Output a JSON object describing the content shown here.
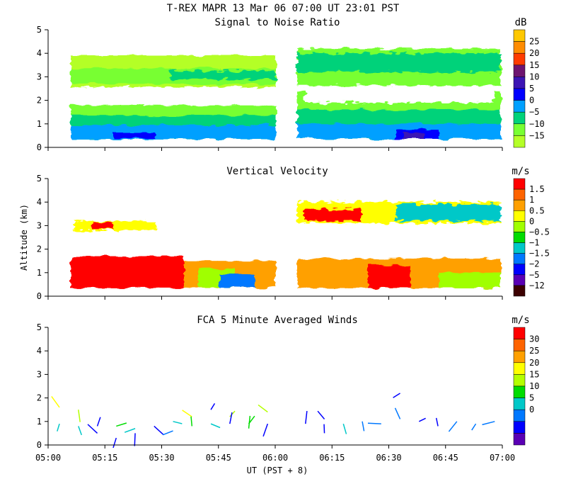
{
  "figure": {
    "title": "T-REX   MAPR 13 Mar 06   07:00 UT   23:01   PST",
    "xlabel": "UT  (PST + 8)",
    "ylabel": "Altitude (km)",
    "x_ticks": [
      "05:00",
      "05:15",
      "05:30",
      "05:45",
      "06:00",
      "06:15",
      "06:30",
      "06:45",
      "07:00"
    ],
    "y_ticks": [
      "0",
      "1",
      "2",
      "3",
      "4",
      "5"
    ]
  },
  "chart_data": [
    {
      "type": "heatmap",
      "title": "Signal to Noise Ratio",
      "units": "dB",
      "xlim": [
        "05:00",
        "07:00"
      ],
      "ylim": [
        0,
        5
      ],
      "colorbar": {
        "labels": [
          "25",
          "20",
          "15",
          "10",
          "5",
          "0",
          "−5",
          "−10",
          "−15"
        ],
        "colors": [
          "#ffc800",
          "#ff8c00",
          "#ff3c00",
          "#6e1470",
          "#3c14b4",
          "#0000ff",
          "#00a0ff",
          "#00d27a",
          "#78ff32",
          "#b4ff28"
        ]
      },
      "data_gap": [
        "05:59",
        "06:05"
      ],
      "bands": [
        {
          "alt": [
            0.35,
            0.7
          ],
          "value": "-5 to 0 dB"
        },
        {
          "alt": [
            0.7,
            1.6
          ],
          "value": "-10 to -5 dB"
        },
        {
          "alt": [
            2.6,
            3.3
          ],
          "value": "-15 to -10 dB"
        },
        {
          "alt": [
            3.2,
            4.1
          ],
          "value": "-15 dB"
        }
      ]
    },
    {
      "type": "heatmap",
      "title": "Vertical Velocity",
      "units": "m/s",
      "xlim": [
        "05:00",
        "07:00"
      ],
      "ylim": [
        0,
        5
      ],
      "colorbar": {
        "labels": [
          "1.5",
          "1",
          "0.5",
          "0",
          "−0.5",
          "−1",
          "−1.5",
          "−2",
          "−5",
          "−12"
        ],
        "colors": [
          "#ff0000",
          "#ff6400",
          "#ffa000",
          "#ffff00",
          "#a0ff00",
          "#00dc00",
          "#00c8c8",
          "#0078ff",
          "#0000ff",
          "#5a00b4",
          "#3c0000"
        ]
      },
      "data_gap": [
        "05:59",
        "06:05"
      ],
      "bands": [
        {
          "alt": [
            0.35,
            1.7
          ],
          "value": "1 to 1.5 m/s (05:05-05:35)"
        },
        {
          "alt": [
            2.8,
            3.2
          ],
          "value": "mixed"
        },
        {
          "alt": [
            3.0,
            4.0
          ],
          "value": "mixed (06:05-06:58)"
        }
      ]
    },
    {
      "type": "scatter",
      "title": "FCA 5 Minute Averaged Winds",
      "units": "m/s",
      "xlim": [
        "05:00",
        "07:00"
      ],
      "ylim": [
        0,
        5
      ],
      "colorbar": {
        "labels": [
          "30",
          "25",
          "20",
          "15",
          "10",
          "5",
          "0"
        ],
        "colors": [
          "#ff0000",
          "#ff6400",
          "#ffa000",
          "#ffff00",
          "#b4ff00",
          "#00dc00",
          "#00c8c8",
          "#0078ff",
          "#0000ff",
          "#5a00b4"
        ]
      },
      "wind_barbs": [
        {
          "t": "05:03",
          "alt": 1.6,
          "speed": 20
        },
        {
          "t": "05:03",
          "alt": 0.9,
          "speed": 10
        },
        {
          "t": "05:08",
          "alt": 1.5,
          "speed": 18
        },
        {
          "t": "05:08",
          "alt": 0.8,
          "speed": 10
        },
        {
          "t": "05:13",
          "alt": 0.8,
          "speed": 5
        },
        {
          "t": "05:13",
          "alt": 0.5,
          "speed": 2
        },
        {
          "t": "05:18",
          "alt": 0.8,
          "speed": 15
        },
        {
          "t": "05:18",
          "alt": 0.3,
          "speed": 5
        },
        {
          "t": "05:23",
          "alt": 0.7,
          "speed": 10
        },
        {
          "t": "05:23",
          "alt": 0.5,
          "speed": 5
        },
        {
          "t": "05:28",
          "alt": 0.8,
          "speed": 5
        },
        {
          "t": "05:33",
          "alt": 1.0,
          "speed": 10
        },
        {
          "t": "05:33",
          "alt": 0.6,
          "speed": 8
        },
        {
          "t": "05:38",
          "alt": 1.2,
          "speed": 20
        },
        {
          "t": "05:38",
          "alt": 0.8,
          "speed": 15
        },
        {
          "t": "05:43",
          "alt": 1.5,
          "speed": 2
        },
        {
          "t": "05:43",
          "alt": 0.9,
          "speed": 10
        },
        {
          "t": "05:48",
          "alt": 1.2,
          "speed": 18
        },
        {
          "t": "05:48",
          "alt": 0.9,
          "speed": 5
        },
        {
          "t": "05:53",
          "alt": 0.9,
          "speed": 15
        },
        {
          "t": "05:53",
          "alt": 0.7,
          "speed": 12
        },
        {
          "t": "05:58",
          "alt": 1.4,
          "speed": 18
        },
        {
          "t": "05:58",
          "alt": 0.9,
          "speed": 5
        },
        {
          "t": "06:08",
          "alt": 0.9,
          "speed": 2
        },
        {
          "t": "06:13",
          "alt": 1.1,
          "speed": 5
        },
        {
          "t": "06:13",
          "alt": 0.5,
          "speed": 3
        },
        {
          "t": "06:18",
          "alt": 0.9,
          "speed": 10
        },
        {
          "t": "06:23",
          "alt": 1.0,
          "speed": 6
        },
        {
          "t": "06:28",
          "alt": 0.9,
          "speed": 8
        },
        {
          "t": "06:33",
          "alt": 2.2,
          "speed": 4
        },
        {
          "t": "06:33",
          "alt": 1.1,
          "speed": 6
        },
        {
          "t": "06:38",
          "alt": 1.0,
          "speed": 2
        },
        {
          "t": "06:43",
          "alt": 0.8,
          "speed": 4
        },
        {
          "t": "06:48",
          "alt": 1.0,
          "speed": 6
        },
        {
          "t": "06:53",
          "alt": 0.9,
          "speed": 8
        },
        {
          "t": "06:58",
          "alt": 1.0,
          "speed": 6
        }
      ]
    }
  ]
}
